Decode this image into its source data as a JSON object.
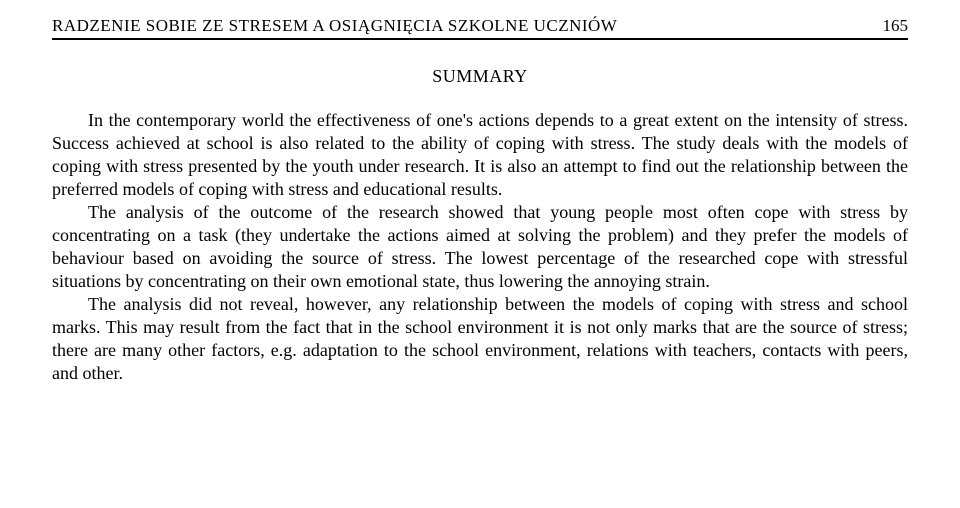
{
  "header": {
    "running_title": "RADZENIE SOBIE ZE STRESEM A OSIĄGNIĘCIA SZKOLNE UCZNIÓW",
    "page_number": "165"
  },
  "title": "SUMMARY",
  "paragraphs": {
    "p1": "In the contemporary world the effectiveness of one's actions depends to a great extent on the intensity of stress. Success achieved at school is also related to the ability of coping with stress. The study deals with the models of coping with stress presented by the youth under research. It is also an attempt to find out the relationship between the preferred models of coping with stress and educational results.",
    "p2": "The analysis of the outcome of the research showed that young people most often cope with stress by concentrating on a task (they undertake the actions aimed at solving the problem) and they prefer the models of behaviour based on avoiding the source of stress. The lowest percentage of the researched cope with stressful situations by concentrating on their own emotional state, thus lowering the annoying strain.",
    "p3": "The analysis did not reveal, however, any relationship between the models of coping with stress and school marks. This may result from the fact that in the school environment it is not only marks that are the source of stress; there are many other factors, e.g. adaptation to the school environment, relations with teachers, contacts with peers, and other."
  }
}
